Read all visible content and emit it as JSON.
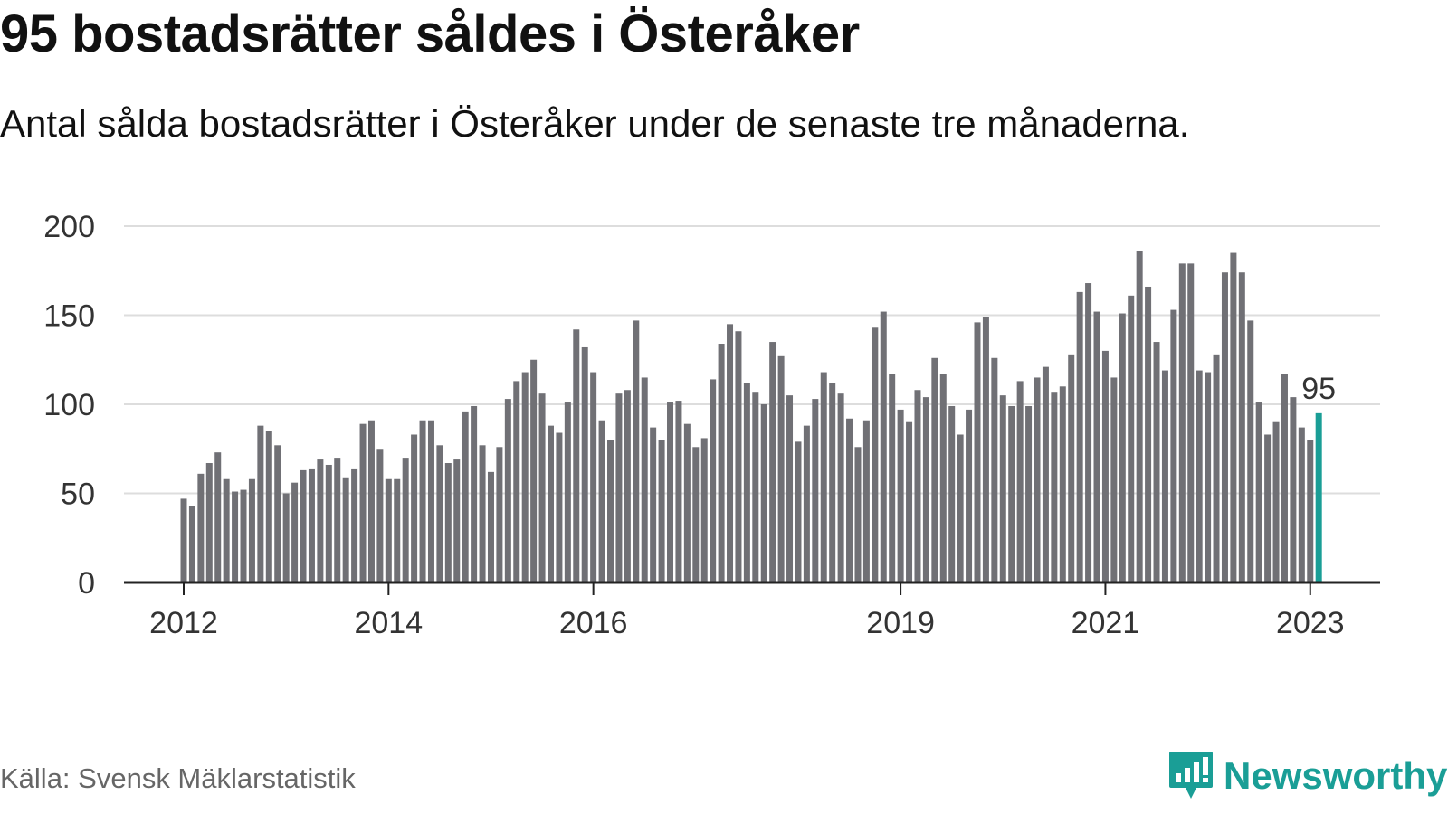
{
  "title": "95 bostadsrätter såldes i Österåker",
  "subtitle": "Antal sålda bostadsrätter i Österåker under de senaste tre månaderna.",
  "source": "Källa: Svensk Mäklarstatistik",
  "brand": {
    "name": "Newsworthy",
    "logo_icon": "bar-chart-speech-bubble-icon"
  },
  "colors": {
    "bar": "#707075",
    "highlight": "#1a9e96",
    "grid": "#dddddd",
    "axis": "#222222"
  },
  "chart_data": {
    "type": "bar",
    "start": "2012-01",
    "x_tick_labels": [
      "2012",
      "2014",
      "2016",
      "2019",
      "2021",
      "2023"
    ],
    "y_ticks": [
      0,
      50,
      100,
      150,
      200
    ],
    "ylim": [
      0,
      200
    ],
    "grid": true,
    "highlight_label": "95",
    "values": [
      47,
      43,
      61,
      67,
      73,
      58,
      51,
      52,
      58,
      88,
      85,
      77,
      50,
      56,
      63,
      64,
      69,
      66,
      70,
      59,
      64,
      89,
      91,
      75,
      58,
      58,
      70,
      83,
      91,
      91,
      77,
      67,
      69,
      96,
      99,
      77,
      62,
      76,
      103,
      113,
      118,
      125,
      106,
      88,
      84,
      101,
      142,
      132,
      118,
      91,
      80,
      106,
      108,
      147,
      115,
      87,
      80,
      101,
      102,
      89,
      76,
      81,
      114,
      134,
      145,
      141,
      112,
      107,
      100,
      135,
      127,
      105,
      79,
      88,
      103,
      118,
      112,
      106,
      92,
      76,
      91,
      143,
      152,
      117,
      97,
      90,
      108,
      104,
      126,
      117,
      99,
      83,
      97,
      146,
      149,
      126,
      105,
      99,
      113,
      99,
      115,
      121,
      107,
      110,
      128,
      163,
      168,
      152,
      130,
      115,
      151,
      161,
      186,
      166,
      135,
      119,
      153,
      179,
      179,
      119,
      118,
      128,
      174,
      185,
      174,
      147,
      101,
      83,
      90,
      117,
      104,
      87,
      80,
      95
    ]
  }
}
